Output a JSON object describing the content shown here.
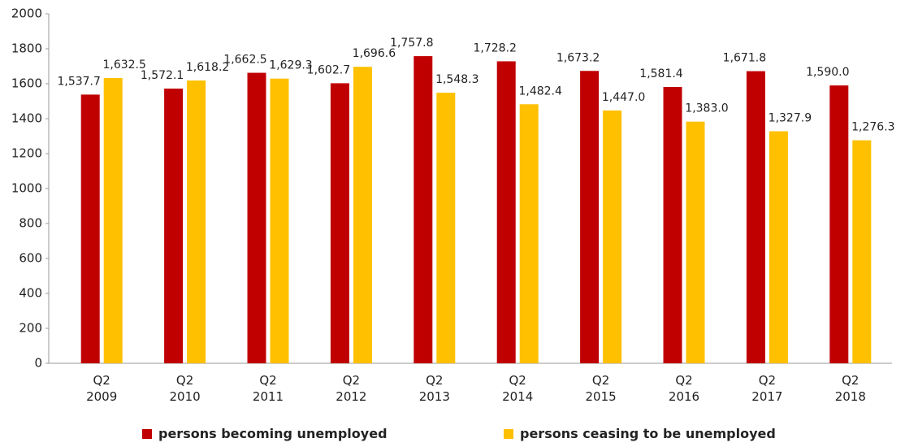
{
  "chart_data": {
    "type": "bar",
    "categories": [
      "Q2 2009",
      "Q2 2010",
      "Q2 2011",
      "Q2 2012",
      "Q2 2013",
      "Q2 2014",
      "Q2 2015",
      "Q2 2016",
      "Q2 2017",
      "Q2 2018"
    ],
    "series": [
      {
        "name": "persons becoming unemployed",
        "color": "#c00000",
        "values": [
          1537.7,
          1572.1,
          1662.5,
          1602.7,
          1757.8,
          1728.2,
          1673.2,
          1581.4,
          1671.8,
          1590.0
        ],
        "value_labels": [
          "1,537.7",
          "1,572.1",
          "1,662.5",
          "1,602.7",
          "1,757.8",
          "1,728.2",
          "1,673.2",
          "1,581.4",
          "1,671.8",
          "1,590.0"
        ]
      },
      {
        "name": "persons ceasing to be unemployed",
        "color": "#ffc000",
        "values": [
          1632.5,
          1618.2,
          1629.3,
          1696.6,
          1548.3,
          1482.4,
          1447.0,
          1383.0,
          1327.9,
          1276.3
        ],
        "value_labels": [
          "1,632.5",
          "1,618.2",
          "1,629.3",
          "1,696.6",
          "1,548.3",
          "1,482.4",
          "1,447.0",
          "1,383.0",
          "1,327.9",
          "1,276.3"
        ]
      }
    ],
    "ylim": [
      0,
      2000
    ],
    "yticks": [
      0,
      200,
      400,
      600,
      800,
      1000,
      1200,
      1400,
      1600,
      1800,
      2000
    ],
    "grid": false,
    "legend": "bottom"
  }
}
